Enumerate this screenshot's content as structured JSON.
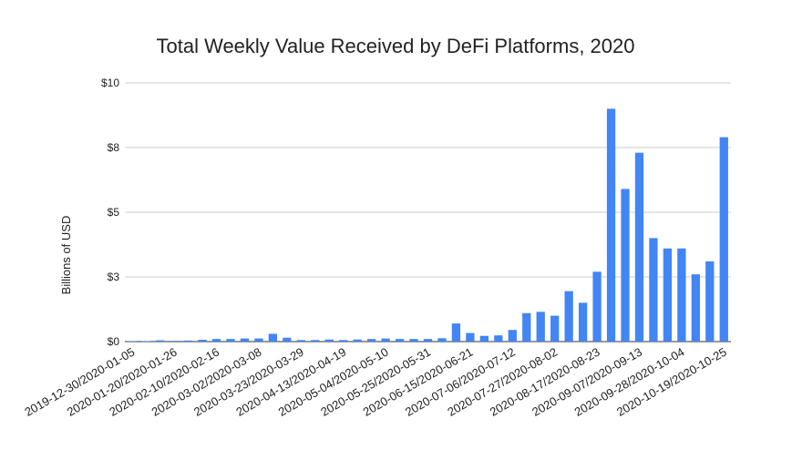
{
  "chart_data": {
    "type": "bar",
    "title": "Total Weekly Value Received by DeFi Platforms, 2020",
    "y_label": "Billions of USD",
    "color": "#4285f4",
    "grid": true,
    "ylim": [
      0,
      10
    ],
    "yticks": [
      {
        "value": 0,
        "label": "$0"
      },
      {
        "value": 2.5,
        "label": "$3"
      },
      {
        "value": 5,
        "label": "$5"
      },
      {
        "value": 7.5,
        "label": "$8"
      },
      {
        "value": 10,
        "label": "$10"
      }
    ],
    "categories": [
      "2019-12-30/2020-01-05",
      null,
      null,
      "2020-01-20/2020-01-26",
      null,
      null,
      "2020-02-10/2020-02-16",
      null,
      null,
      "2020-03-02/2020-03-08",
      null,
      null,
      "2020-03-23/2020-03-29",
      null,
      null,
      "2020-04-13/2020-04-19",
      null,
      null,
      "2020-05-04/2020-05-10",
      null,
      null,
      "2020-05-25/2020-05-31",
      null,
      null,
      "2020-06-15/2020-06-21",
      null,
      null,
      "2020-07-06/2020-07-12",
      null,
      null,
      "2020-07-27/2020-08-02",
      null,
      null,
      "2020-08-17/2020-08-23",
      null,
      null,
      "2020-09-07/2020-09-13",
      null,
      null,
      "2020-09-28/2020-10-04",
      null,
      null,
      "2020-10-19/2020-10-25"
    ],
    "values": [
      0.02,
      0.02,
      0.05,
      0.03,
      0.04,
      0.07,
      0.1,
      0.1,
      0.12,
      0.12,
      0.3,
      0.15,
      0.06,
      0.06,
      0.08,
      0.06,
      0.08,
      0.1,
      0.12,
      0.1,
      0.1,
      0.1,
      0.13,
      0.7,
      0.33,
      0.22,
      0.24,
      0.45,
      1.1,
      1.15,
      1.0,
      1.95,
      1.5,
      2.7,
      9.0,
      5.9,
      7.3,
      4.0,
      3.6,
      3.6,
      2.6,
      3.1,
      7.9
    ]
  }
}
